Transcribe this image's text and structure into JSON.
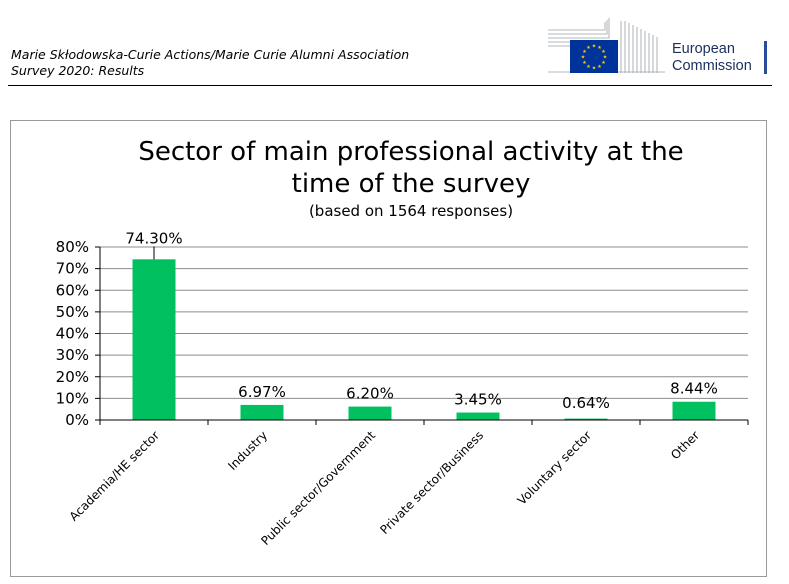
{
  "header": {
    "line1": "Marie Skłodowska-Curie Actions/Marie Curie Alumni Association",
    "line2": "Survey 2020: Results",
    "logo_line1": "European",
    "logo_line2": "Commission"
  },
  "colors": {
    "bar": "#00c060",
    "grid": "#8c8c8c",
    "eu_blue": "#003399",
    "eu_star": "#ffcc00"
  },
  "chart_data": {
    "type": "bar",
    "title_line1": "Sector of main professional activity at the",
    "title_line2": "time of the survey",
    "subtitle": "(based on 1564 responses)",
    "categories": [
      "Academia/HE sector",
      "Industry",
      "Public sector/Government",
      "Private sector/Business",
      "Voluntary sector",
      "Other"
    ],
    "values": [
      74.3,
      6.97,
      6.2,
      3.45,
      0.64,
      8.44
    ],
    "data_labels": [
      "74.30%",
      "6.97%",
      "6.20%",
      "3.45%",
      "0.64%",
      "8.44%"
    ],
    "yticks": [
      "0%",
      "10%",
      "20%",
      "30%",
      "40%",
      "50%",
      "60%",
      "70%",
      "80%"
    ],
    "ylim": [
      0,
      80
    ],
    "grid": true,
    "legend": "none"
  }
}
